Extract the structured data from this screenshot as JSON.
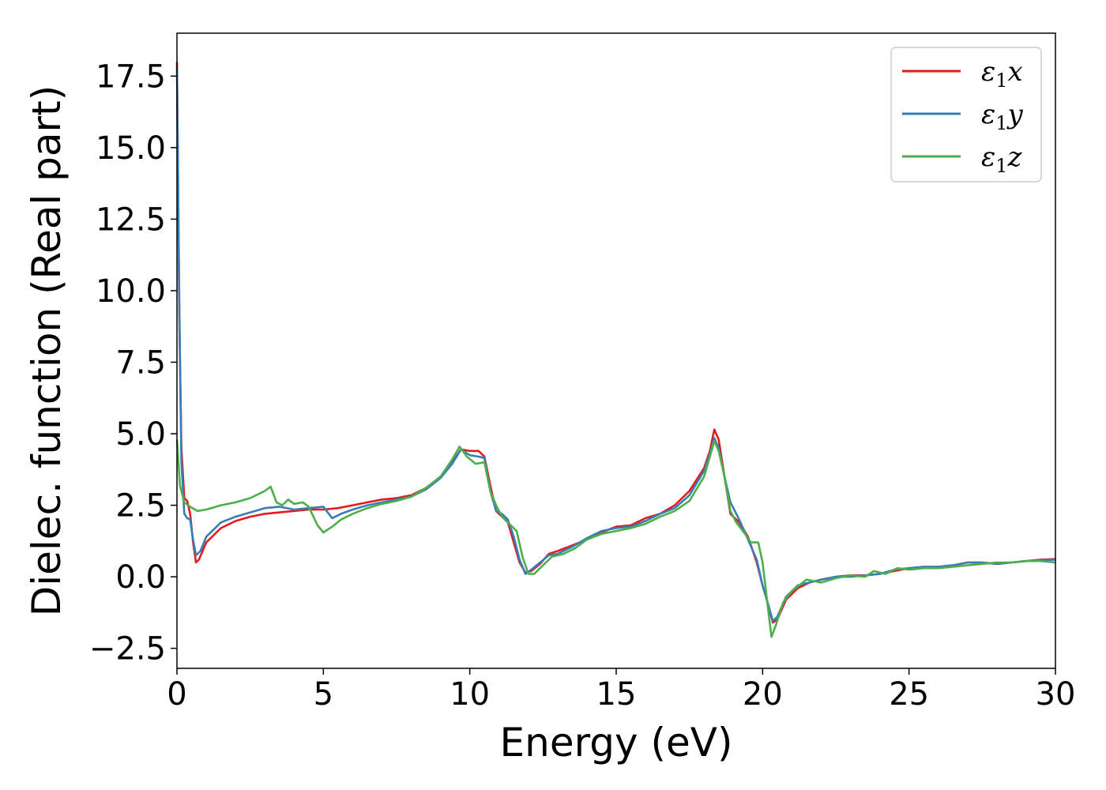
{
  "chart_data": {
    "type": "line",
    "title": "",
    "xlabel": "Energy (eV)",
    "ylabel": "Dielec. function (Real part)",
    "xlim": [
      0,
      30
    ],
    "ylim": [
      -3.2,
      19.0
    ],
    "xticks": [
      0,
      5,
      10,
      15,
      20,
      25,
      30
    ],
    "xtick_labels": [
      "0",
      "5",
      "10",
      "15",
      "20",
      "25",
      "30"
    ],
    "yticks": [
      -2.5,
      0.0,
      2.5,
      5.0,
      7.5,
      10.0,
      12.5,
      15.0,
      17.5
    ],
    "ytick_labels": [
      "−2.5",
      "0.0",
      "2.5",
      "5.0",
      "7.5",
      "10.0",
      "12.5",
      "15.0",
      "17.5"
    ],
    "grid": false,
    "legend": {
      "position": "top-right"
    },
    "series": [
      {
        "name": "ε₁x",
        "label_main": "ε",
        "label_sub": "1",
        "label_suffix": "x",
        "color": "#e41a1c",
        "points": [
          [
            0.0,
            18.0
          ],
          [
            0.08,
            9.0
          ],
          [
            0.15,
            4.5
          ],
          [
            0.25,
            2.75
          ],
          [
            0.35,
            2.65
          ],
          [
            0.45,
            2.2
          ],
          [
            0.55,
            1.2
          ],
          [
            0.65,
            0.5
          ],
          [
            0.75,
            0.6
          ],
          [
            1.0,
            1.2
          ],
          [
            1.5,
            1.7
          ],
          [
            2.0,
            1.95
          ],
          [
            2.5,
            2.1
          ],
          [
            3.0,
            2.2
          ],
          [
            3.5,
            2.25
          ],
          [
            4.0,
            2.3
          ],
          [
            4.5,
            2.35
          ],
          [
            5.0,
            2.35
          ],
          [
            5.5,
            2.4
          ],
          [
            6.0,
            2.5
          ],
          [
            6.5,
            2.6
          ],
          [
            7.0,
            2.7
          ],
          [
            7.5,
            2.75
          ],
          [
            8.0,
            2.85
          ],
          [
            8.5,
            3.1
          ],
          [
            9.0,
            3.5
          ],
          [
            9.4,
            4.0
          ],
          [
            9.7,
            4.45
          ],
          [
            10.0,
            4.4
          ],
          [
            10.3,
            4.4
          ],
          [
            10.5,
            4.2
          ],
          [
            10.7,
            3.2
          ],
          [
            10.9,
            2.3
          ],
          [
            11.1,
            2.1
          ],
          [
            11.3,
            1.9
          ],
          [
            11.5,
            1.2
          ],
          [
            11.7,
            0.5
          ],
          [
            11.9,
            0.15
          ],
          [
            12.1,
            0.2
          ],
          [
            12.4,
            0.45
          ],
          [
            12.7,
            0.8
          ],
          [
            13.0,
            0.9
          ],
          [
            13.5,
            1.1
          ],
          [
            14.0,
            1.3
          ],
          [
            14.5,
            1.55
          ],
          [
            15.0,
            1.75
          ],
          [
            15.5,
            1.8
          ],
          [
            16.0,
            2.05
          ],
          [
            16.5,
            2.2
          ],
          [
            17.0,
            2.5
          ],
          [
            17.5,
            3.0
          ],
          [
            18.0,
            3.8
          ],
          [
            18.2,
            4.4
          ],
          [
            18.35,
            5.15
          ],
          [
            18.5,
            4.8
          ],
          [
            18.7,
            3.5
          ],
          [
            18.9,
            2.2
          ],
          [
            19.2,
            1.9
          ],
          [
            19.5,
            1.4
          ],
          [
            19.8,
            0.5
          ],
          [
            20.0,
            -0.3
          ],
          [
            20.2,
            -1.0
          ],
          [
            20.35,
            -1.6
          ],
          [
            20.5,
            -1.5
          ],
          [
            20.8,
            -0.8
          ],
          [
            21.2,
            -0.4
          ],
          [
            21.6,
            -0.2
          ],
          [
            22.0,
            -0.1
          ],
          [
            22.5,
            0.0
          ],
          [
            23.0,
            0.05
          ],
          [
            23.5,
            0.05
          ],
          [
            24.0,
            0.1
          ],
          [
            24.5,
            0.2
          ],
          [
            25.0,
            0.3
          ],
          [
            25.5,
            0.3
          ],
          [
            26.0,
            0.35
          ],
          [
            26.5,
            0.4
          ],
          [
            27.0,
            0.5
          ],
          [
            27.5,
            0.5
          ],
          [
            28.0,
            0.45
          ],
          [
            28.5,
            0.5
          ],
          [
            29.0,
            0.55
          ],
          [
            29.5,
            0.6
          ],
          [
            30.0,
            0.62
          ]
        ]
      },
      {
        "name": "ε₁y",
        "label_main": "ε",
        "label_sub": "1",
        "label_suffix": "y",
        "color": "#377eb8",
        "points": [
          [
            0.0,
            17.8
          ],
          [
            0.08,
            9.5
          ],
          [
            0.15,
            4.0
          ],
          [
            0.25,
            2.2
          ],
          [
            0.35,
            2.05
          ],
          [
            0.45,
            2.0
          ],
          [
            0.55,
            1.3
          ],
          [
            0.65,
            0.75
          ],
          [
            0.8,
            0.9
          ],
          [
            1.0,
            1.4
          ],
          [
            1.5,
            1.9
          ],
          [
            2.0,
            2.1
          ],
          [
            2.5,
            2.25
          ],
          [
            3.0,
            2.4
          ],
          [
            3.5,
            2.45
          ],
          [
            4.0,
            2.35
          ],
          [
            4.5,
            2.4
          ],
          [
            5.0,
            2.45
          ],
          [
            5.3,
            2.05
          ],
          [
            5.6,
            2.2
          ],
          [
            6.0,
            2.35
          ],
          [
            6.5,
            2.5
          ],
          [
            7.0,
            2.6
          ],
          [
            7.5,
            2.7
          ],
          [
            8.0,
            2.8
          ],
          [
            8.5,
            3.05
          ],
          [
            9.0,
            3.45
          ],
          [
            9.4,
            3.95
          ],
          [
            9.7,
            4.45
          ],
          [
            10.0,
            4.25
          ],
          [
            10.3,
            4.2
          ],
          [
            10.5,
            4.15
          ],
          [
            10.7,
            3.0
          ],
          [
            10.9,
            2.3
          ],
          [
            11.1,
            2.2
          ],
          [
            11.3,
            2.0
          ],
          [
            11.5,
            1.4
          ],
          [
            11.7,
            0.6
          ],
          [
            11.9,
            0.1
          ],
          [
            12.1,
            0.25
          ],
          [
            12.4,
            0.5
          ],
          [
            12.7,
            0.75
          ],
          [
            13.0,
            0.8
          ],
          [
            13.5,
            1.05
          ],
          [
            14.0,
            1.35
          ],
          [
            14.5,
            1.6
          ],
          [
            15.0,
            1.7
          ],
          [
            15.5,
            1.75
          ],
          [
            16.0,
            1.95
          ],
          [
            16.5,
            2.2
          ],
          [
            17.0,
            2.4
          ],
          [
            17.5,
            2.85
          ],
          [
            18.0,
            3.7
          ],
          [
            18.2,
            4.3
          ],
          [
            18.35,
            4.85
          ],
          [
            18.5,
            4.5
          ],
          [
            18.7,
            3.5
          ],
          [
            18.9,
            2.6
          ],
          [
            19.2,
            2.0
          ],
          [
            19.5,
            1.3
          ],
          [
            19.8,
            0.6
          ],
          [
            20.0,
            -0.3
          ],
          [
            20.2,
            -1.0
          ],
          [
            20.35,
            -1.55
          ],
          [
            20.5,
            -1.4
          ],
          [
            20.8,
            -0.7
          ],
          [
            21.2,
            -0.3
          ],
          [
            21.6,
            -0.2
          ],
          [
            22.0,
            -0.1
          ],
          [
            22.5,
            0.0
          ],
          [
            23.0,
            0.0
          ],
          [
            23.5,
            0.05
          ],
          [
            24.0,
            0.1
          ],
          [
            24.5,
            0.25
          ],
          [
            25.0,
            0.3
          ],
          [
            25.5,
            0.35
          ],
          [
            26.0,
            0.35
          ],
          [
            26.5,
            0.4
          ],
          [
            27.0,
            0.5
          ],
          [
            27.5,
            0.5
          ],
          [
            28.0,
            0.45
          ],
          [
            28.5,
            0.5
          ],
          [
            29.0,
            0.55
          ],
          [
            29.5,
            0.58
          ],
          [
            30.0,
            0.6
          ]
        ]
      },
      {
        "name": "ε₁z",
        "label_main": "ε",
        "label_sub": "1",
        "label_suffix": "z",
        "color": "#4daf4a",
        "points": [
          [
            0.0,
            4.8
          ],
          [
            0.1,
            3.2
          ],
          [
            0.25,
            2.6
          ],
          [
            0.45,
            2.45
          ],
          [
            0.7,
            2.3
          ],
          [
            1.0,
            2.35
          ],
          [
            1.5,
            2.5
          ],
          [
            2.0,
            2.6
          ],
          [
            2.5,
            2.75
          ],
          [
            3.0,
            3.0
          ],
          [
            3.2,
            3.15
          ],
          [
            3.4,
            2.6
          ],
          [
            3.6,
            2.5
          ],
          [
            3.8,
            2.7
          ],
          [
            4.0,
            2.55
          ],
          [
            4.3,
            2.6
          ],
          [
            4.5,
            2.45
          ],
          [
            4.8,
            1.8
          ],
          [
            5.0,
            1.55
          ],
          [
            5.3,
            1.75
          ],
          [
            5.6,
            2.0
          ],
          [
            6.0,
            2.2
          ],
          [
            6.5,
            2.4
          ],
          [
            7.0,
            2.55
          ],
          [
            7.5,
            2.65
          ],
          [
            8.0,
            2.8
          ],
          [
            8.5,
            3.1
          ],
          [
            9.0,
            3.5
          ],
          [
            9.4,
            4.1
          ],
          [
            9.65,
            4.55
          ],
          [
            9.9,
            4.2
          ],
          [
            10.2,
            3.95
          ],
          [
            10.5,
            4.0
          ],
          [
            10.7,
            3.0
          ],
          [
            10.9,
            2.5
          ],
          [
            11.1,
            2.1
          ],
          [
            11.4,
            1.8
          ],
          [
            11.6,
            1.6
          ],
          [
            11.8,
            0.7
          ],
          [
            12.0,
            0.1
          ],
          [
            12.2,
            0.1
          ],
          [
            12.5,
            0.4
          ],
          [
            12.8,
            0.7
          ],
          [
            13.2,
            0.8
          ],
          [
            13.6,
            1.0
          ],
          [
            14.0,
            1.3
          ],
          [
            14.5,
            1.5
          ],
          [
            15.0,
            1.6
          ],
          [
            15.5,
            1.7
          ],
          [
            16.0,
            1.85
          ],
          [
            16.5,
            2.1
          ],
          [
            17.0,
            2.3
          ],
          [
            17.5,
            2.65
          ],
          [
            18.0,
            3.5
          ],
          [
            18.2,
            4.2
          ],
          [
            18.35,
            4.75
          ],
          [
            18.5,
            4.4
          ],
          [
            18.7,
            3.5
          ],
          [
            18.9,
            2.3
          ],
          [
            19.1,
            1.9
          ],
          [
            19.4,
            1.5
          ],
          [
            19.6,
            1.2
          ],
          [
            19.85,
            1.2
          ],
          [
            20.0,
            0.5
          ],
          [
            20.15,
            -0.8
          ],
          [
            20.3,
            -2.1
          ],
          [
            20.45,
            -1.7
          ],
          [
            20.7,
            -0.9
          ],
          [
            21.0,
            -0.5
          ],
          [
            21.5,
            -0.1
          ],
          [
            22.0,
            -0.2
          ],
          [
            22.5,
            -0.05
          ],
          [
            23.0,
            0.05
          ],
          [
            23.5,
            0.0
          ],
          [
            23.8,
            0.2
          ],
          [
            24.2,
            0.1
          ],
          [
            24.6,
            0.3
          ],
          [
            25.0,
            0.25
          ],
          [
            25.5,
            0.3
          ],
          [
            26.0,
            0.3
          ],
          [
            26.5,
            0.35
          ],
          [
            27.0,
            0.4
          ],
          [
            27.5,
            0.45
          ],
          [
            28.0,
            0.5
          ],
          [
            28.5,
            0.5
          ],
          [
            29.0,
            0.55
          ],
          [
            29.5,
            0.55
          ],
          [
            30.0,
            0.5
          ]
        ]
      }
    ]
  }
}
